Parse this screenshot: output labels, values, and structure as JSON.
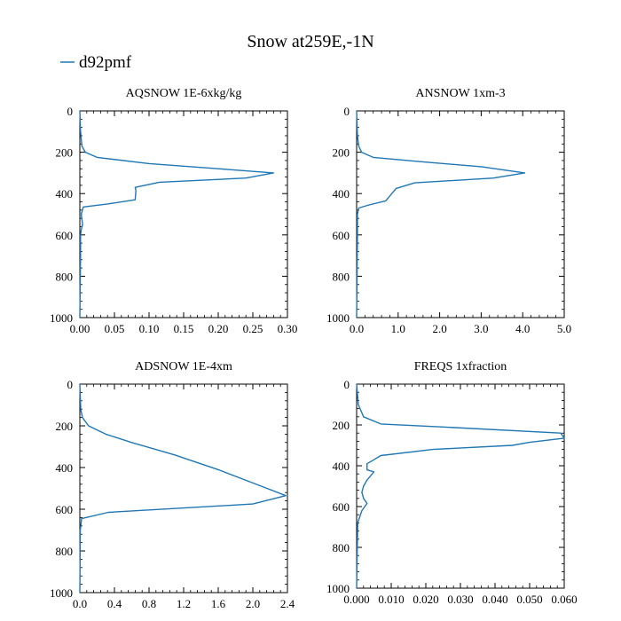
{
  "title": "Snow at259E,-1N",
  "legend": {
    "label": "d92pmf",
    "color": "#1f77b4"
  },
  "chart_data": [
    {
      "type": "line",
      "title": "AQSNOW  1E-6xkg/kg",
      "xlim": [
        0,
        0.3
      ],
      "ylim": [
        1000,
        0
      ],
      "xticks": [
        "0.00",
        "0.05",
        "0.10",
        "0.15",
        "0.20",
        "0.25",
        "0.30"
      ],
      "yticks": [
        "0",
        "200",
        "400",
        "600",
        "800",
        "1000"
      ],
      "series": [
        {
          "name": "d92pmf",
          "x": [
            0,
            0.001,
            0.003,
            0.008,
            0.025,
            0.1,
            0.2,
            0.28,
            0.24,
            0.115,
            0.08,
            0.081,
            0.08,
            0.04,
            0.005,
            0.002,
            0.004,
            0.002,
            0.001,
            0.001,
            0.0005,
            0
          ],
          "y": [
            0,
            100,
            170,
            200,
            225,
            255,
            280,
            300,
            325,
            345,
            370,
            385,
            430,
            450,
            465,
            500,
            550,
            575,
            600,
            700,
            850,
            1000
          ]
        }
      ]
    },
    {
      "type": "line",
      "title": "ANSNOW  1xm-3",
      "xlim": [
        0,
        5.0
      ],
      "ylim": [
        1000,
        0
      ],
      "xticks": [
        "0.0",
        "1.0",
        "2.0",
        "3.0",
        "4.0",
        "5.0"
      ],
      "yticks": [
        "0",
        "200",
        "400",
        "600",
        "800",
        "1000"
      ],
      "series": [
        {
          "name": "d92pmf",
          "x": [
            0,
            0.02,
            0.05,
            0.12,
            0.4,
            1.5,
            3.0,
            4.05,
            3.3,
            1.4,
            0.95,
            0.7,
            0.3,
            0.05,
            0.02,
            0.02,
            0.01,
            0
          ],
          "y": [
            0,
            120,
            170,
            200,
            225,
            245,
            270,
            300,
            325,
            348,
            375,
            435,
            455,
            470,
            500,
            600,
            800,
            1000
          ]
        }
      ]
    },
    {
      "type": "line",
      "title": "ADSNOW  1E-4xm",
      "xlim": [
        0,
        2.4
      ],
      "ylim": [
        1000,
        0
      ],
      "xticks": [
        "0.0",
        "0.4",
        "0.8",
        "1.2",
        "1.6",
        "2.0",
        "2.4"
      ],
      "yticks": [
        "0",
        "200",
        "400",
        "600",
        "800",
        "1000"
      ],
      "series": [
        {
          "name": "d92pmf",
          "x": [
            0,
            0.01,
            0.03,
            0.1,
            0.3,
            0.6,
            1.1,
            1.6,
            2.1,
            2.38,
            2.0,
            0.33,
            0.02,
            0.005,
            0
          ],
          "y": [
            0,
            120,
            160,
            200,
            240,
            280,
            340,
            410,
            490,
            535,
            575,
            615,
            645,
            700,
            1000
          ]
        }
      ]
    },
    {
      "type": "line",
      "title": "FREQS  1xfraction",
      "xlim": [
        0,
        0.06
      ],
      "ylim": [
        1000,
        0
      ],
      "xticks": [
        "0.000",
        "0.010",
        "0.020",
        "0.030",
        "0.040",
        "0.050",
        "0.060"
      ],
      "yticks": [
        "0",
        "200",
        "400",
        "600",
        "800",
        "1000"
      ],
      "series": [
        {
          "name": "d92pmf",
          "x": [
            0,
            0.0005,
            0.002,
            0.007,
            0.025,
            0.059,
            0.06,
            0.05,
            0.045,
            0.022,
            0.007,
            0.0045,
            0.003,
            0.003,
            0.005,
            0.003,
            0.002,
            0.0015,
            0.002,
            0.003,
            0.0015,
            0.0003,
            0
          ],
          "y": [
            0,
            100,
            160,
            195,
            210,
            240,
            265,
            285,
            300,
            320,
            350,
            375,
            390,
            420,
            430,
            470,
            500,
            530,
            560,
            585,
            620,
            680,
            1000
          ]
        }
      ]
    }
  ]
}
